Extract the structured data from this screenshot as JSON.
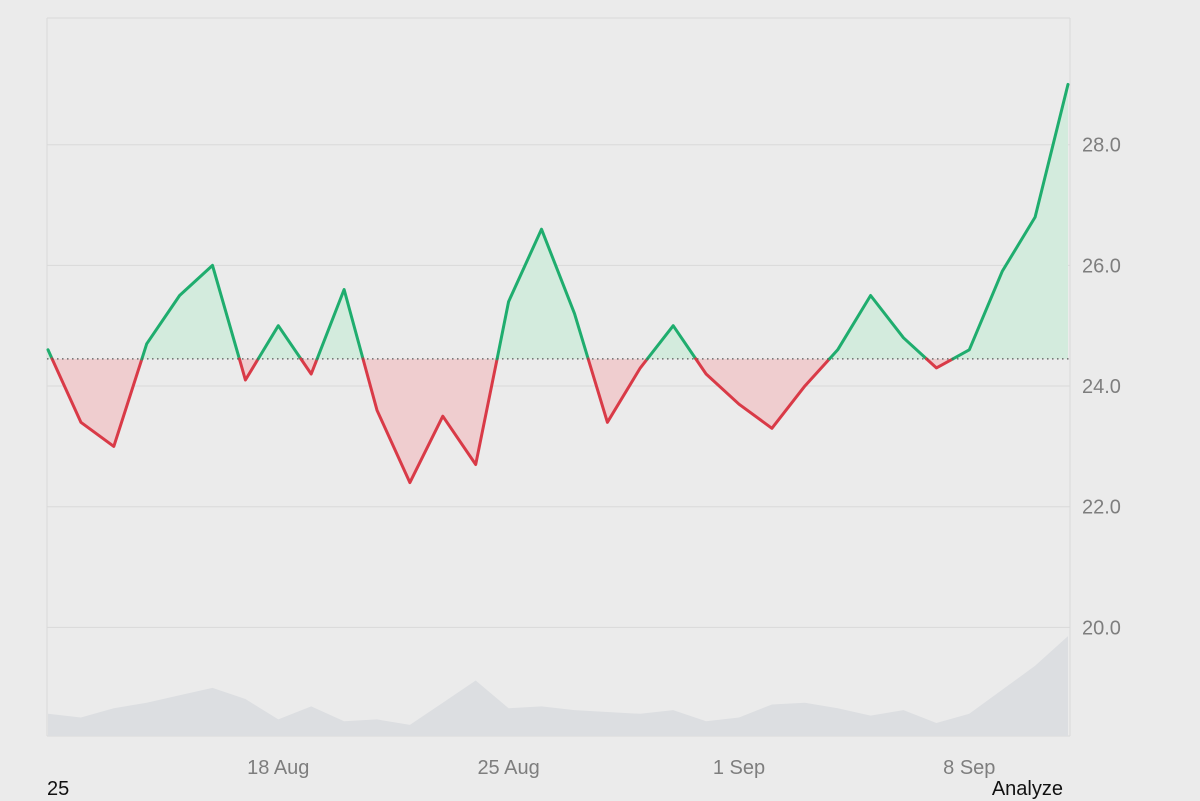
{
  "footer": {
    "left_text": "25",
    "right_text": "Analyze"
  },
  "colors": {
    "background": "#ebebeb",
    "gridline": "#d9d9d9",
    "up_line": "#1fad6e",
    "up_fill": "#d3ebdd",
    "down_line": "#d93a47",
    "down_fill": "#efcdcf",
    "baseline_dots": "#555555",
    "volume_fill": "#dcdee1",
    "tick_text": "#7e7e7e"
  },
  "chart_data": {
    "type": "line",
    "title": "",
    "xlabel": "",
    "ylabel": "",
    "y_axis_position": "right",
    "ylim": [
      18.2,
      30.1
    ],
    "grid": true,
    "legend": "none",
    "baseline": 24.45,
    "x_ticks": [
      "18 Aug",
      "25 Aug",
      "1 Sep",
      "8 Sep"
    ],
    "y_ticks": [
      "20.0",
      "22.0",
      "24.0",
      "26.0",
      "28.0"
    ],
    "series": [
      {
        "x": [
          "11 Aug",
          "12 Aug",
          "13 Aug",
          "14 Aug",
          "15 Aug",
          "16 Aug",
          "17 Aug",
          "18 Aug",
          "19 Aug",
          "20 Aug",
          "21 Aug",
          "22 Aug",
          "23 Aug",
          "24 Aug",
          "25 Aug",
          "26 Aug",
          "27 Aug",
          "28 Aug",
          "29 Aug",
          "30 Aug",
          "31 Aug",
          "1 Sep",
          "2 Sep",
          "3 Sep",
          "4 Sep",
          "5 Sep",
          "6 Sep",
          "7 Sep",
          "8 Sep",
          "9 Sep",
          "10 Sep",
          "11 Sep"
        ],
        "values": [
          24.6,
          23.4,
          23.0,
          24.7,
          25.5,
          26.0,
          24.1,
          25.0,
          24.2,
          25.6,
          23.6,
          22.4,
          23.5,
          22.7,
          25.4,
          26.6,
          25.2,
          23.4,
          24.3,
          25.0,
          24.2,
          23.7,
          23.3,
          24.0,
          24.6,
          25.5,
          24.8,
          24.3,
          24.6,
          25.9,
          26.8,
          29.0
        ]
      }
    ],
    "volume": {
      "ylim": [
        0,
        6
      ],
      "values": [
        1.2,
        1.0,
        1.5,
        1.8,
        2.2,
        2.6,
        2.0,
        0.9,
        1.6,
        0.8,
        0.9,
        0.6,
        1.8,
        3.0,
        1.5,
        1.6,
        1.4,
        1.3,
        1.2,
        1.4,
        0.8,
        1.0,
        1.7,
        1.8,
        1.5,
        1.1,
        1.4,
        0.7,
        1.2,
        2.5,
        3.8,
        5.4
      ]
    }
  }
}
